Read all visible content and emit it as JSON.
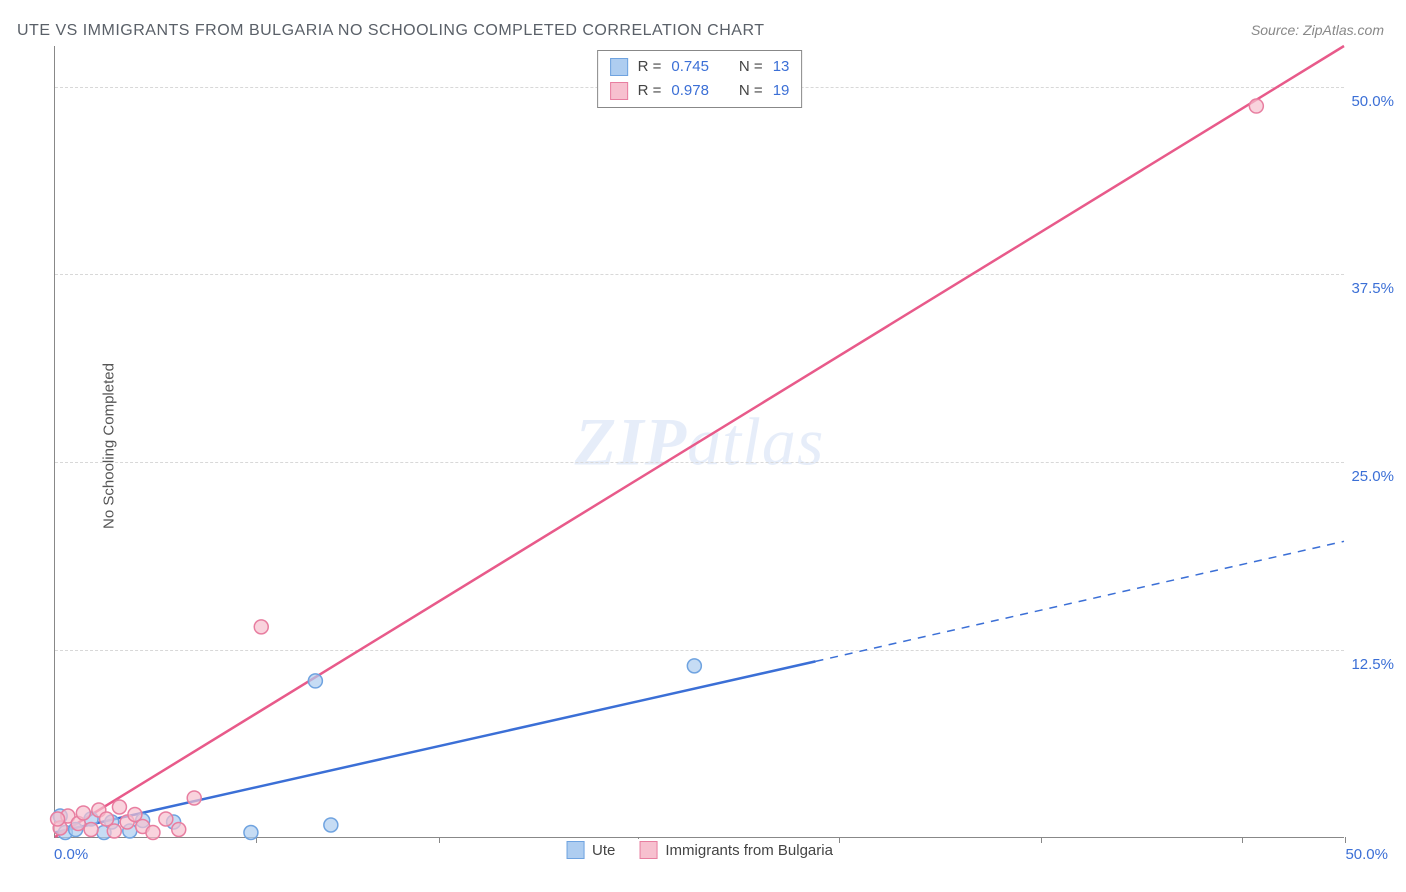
{
  "title": "UTE VS IMMIGRANTS FROM BULGARIA NO SCHOOLING COMPLETED CORRELATION CHART",
  "source": "Source: ZipAtlas.com",
  "y_axis_label": "No Schooling Completed",
  "watermark": "ZIPatlas",
  "chart": {
    "type": "scatter",
    "background_color": "#ffffff",
    "grid_color": "#d8d8d8",
    "axis_color": "#888888",
    "tick_label_color": "#3b6fd6",
    "xlim": [
      0,
      50
    ],
    "ylim": [
      0,
      52.7
    ],
    "x_origin_label": "0.0%",
    "x_max_label": "50.0%",
    "x_tick_positions": [
      7.8,
      14.9,
      22.6,
      30.4,
      38.2,
      46.0,
      50.0
    ],
    "y_gridlines": [
      12.5,
      25.0,
      37.5,
      50.0
    ],
    "y_tick_labels": [
      "12.5%",
      "25.0%",
      "37.5%",
      "50.0%"
    ],
    "marker_radius": 7,
    "marker_stroke_width": 1.5,
    "line_width": 2.5,
    "series": [
      {
        "name": "Ute",
        "color_fill": "#aecdf0",
        "color_stroke": "#6fa3e0",
        "line_color": "#3b6fd6",
        "r": 0.745,
        "n": 13,
        "points": [
          {
            "x": 0.4,
            "y": 0.3
          },
          {
            "x": 0.8,
            "y": 0.5
          },
          {
            "x": 1.4,
            "y": 1.2
          },
          {
            "x": 1.9,
            "y": 0.3
          },
          {
            "x": 2.2,
            "y": 1.0
          },
          {
            "x": 2.9,
            "y": 0.4
          },
          {
            "x": 3.4,
            "y": 1.1
          },
          {
            "x": 4.6,
            "y": 1.0
          },
          {
            "x": 7.6,
            "y": 0.3
          },
          {
            "x": 10.7,
            "y": 0.8
          },
          {
            "x": 10.1,
            "y": 10.4
          },
          {
            "x": 24.8,
            "y": 11.4
          },
          {
            "x": 0.2,
            "y": 1.4
          }
        ],
        "trend_line": {
          "solid_start": {
            "x": 0,
            "y": 0.3
          },
          "solid_end": {
            "x": 29.5,
            "y": 11.7
          },
          "dash_end": {
            "x": 50.0,
            "y": 19.7
          }
        }
      },
      {
        "name": "Immigrants from Bulgaria",
        "color_fill": "#f7c0cf",
        "color_stroke": "#e87ea0",
        "line_color": "#e85a8a",
        "r": 0.978,
        "n": 19,
        "points": [
          {
            "x": 0.2,
            "y": 0.6
          },
          {
            "x": 0.5,
            "y": 1.4
          },
          {
            "x": 0.9,
            "y": 0.9
          },
          {
            "x": 1.1,
            "y": 1.6
          },
          {
            "x": 1.4,
            "y": 0.5
          },
          {
            "x": 1.7,
            "y": 1.8
          },
          {
            "x": 2.0,
            "y": 1.2
          },
          {
            "x": 2.3,
            "y": 0.4
          },
          {
            "x": 2.5,
            "y": 2.0
          },
          {
            "x": 2.8,
            "y": 1.0
          },
          {
            "x": 3.1,
            "y": 1.5
          },
          {
            "x": 3.4,
            "y": 0.7
          },
          {
            "x": 3.8,
            "y": 0.3
          },
          {
            "x": 4.3,
            "y": 1.2
          },
          {
            "x": 4.8,
            "y": 0.5
          },
          {
            "x": 5.4,
            "y": 2.6
          },
          {
            "x": 8.0,
            "y": 14.0
          },
          {
            "x": 0.1,
            "y": 1.2
          },
          {
            "x": 46.6,
            "y": 48.7
          }
        ],
        "trend_line": {
          "solid_start": {
            "x": 0,
            "y": 0
          },
          "solid_end": {
            "x": 50.0,
            "y": 52.7
          }
        }
      }
    ]
  },
  "legend_top": {
    "rows": [
      {
        "swatch_fill": "#aecdf0",
        "swatch_stroke": "#6fa3e0",
        "r": "0.745",
        "n": "13"
      },
      {
        "swatch_fill": "#f7c0cf",
        "swatch_stroke": "#e87ea0",
        "r": "0.978",
        "n": "19"
      }
    ],
    "r_label": "R =",
    "n_label": "N ="
  },
  "legend_bottom": {
    "items": [
      {
        "swatch_fill": "#aecdf0",
        "swatch_stroke": "#6fa3e0",
        "label": "Ute"
      },
      {
        "swatch_fill": "#f7c0cf",
        "swatch_stroke": "#e87ea0",
        "label": "Immigrants from Bulgaria"
      }
    ]
  }
}
